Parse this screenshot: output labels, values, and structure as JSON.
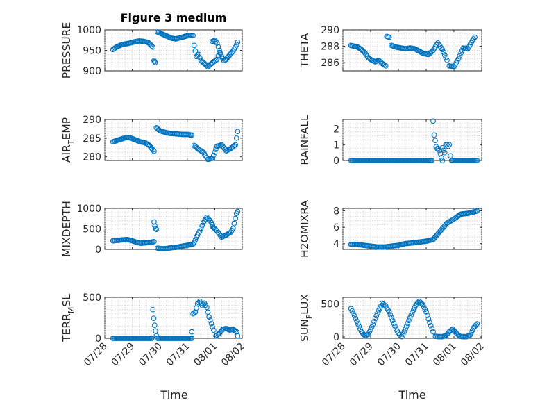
{
  "figure": {
    "title": "Figure 3 medium",
    "xlabel": "Time",
    "date_ticks": [
      "07/28",
      "07/29",
      "07/30",
      "07/31",
      "08/01",
      "08/02"
    ],
    "marker_color": "#0072bd",
    "axes_color": "#262626"
  },
  "chart_data": [
    {
      "type": "scatter",
      "title": "Figure 3 medium",
      "ylabel": "PRESSURE",
      "xlabel": "",
      "x_range": [
        "07/28",
        "08/02"
      ],
      "ylim": [
        900,
        1000
      ],
      "yticks": [
        900,
        950,
        1000
      ],
      "grid": true,
      "segments": [
        {
          "x": [
            "07/28 07:00",
            "07/28 10:00",
            "07/28 14:00",
            "07/28 18:00",
            "07/28 22:00",
            "07/29 02:00",
            "07/29 06:00",
            "07/29 10:00",
            "07/29 14:00",
            "07/29 18:00"
          ],
          "y": [
            952,
            958,
            963,
            966,
            968,
            971,
            973,
            972,
            969,
            958
          ]
        },
        {
          "x": [
            "07/29 19:00",
            "07/29 20:00"
          ],
          "y": [
            925,
            920
          ]
        },
        {
          "x": [
            "07/29 22:00",
            "07/30 02:00",
            "07/30 06:00",
            "07/30 10:00",
            "07/30 14:00",
            "07/30 18:00",
            "07/30 22:00",
            "07/31 02:00",
            "07/31 05:00"
          ],
          "y": [
            995,
            990,
            985,
            980,
            978,
            981,
            984,
            987,
            986
          ]
        },
        {
          "x": [
            "07/31 06:00",
            "07/31 08:00",
            "07/31 10:00",
            "07/31 12:00",
            "07/31 15:00",
            "07/31 18:00",
            "07/31 20:00",
            "07/31 23:00",
            "08/01 02:00",
            "08/01 04:00"
          ],
          "y": [
            962,
            935,
            940,
            925,
            918,
            910,
            915,
            922,
            928,
            945
          ]
        },
        {
          "x": [
            "07/31 22:00",
            "08/01 00:00",
            "08/01 02:00",
            "08/01 04:00",
            "08/01 06:00",
            "08/01 08:00",
            "08/01 10:00",
            "08/01 12:00",
            "08/01 14:00",
            "08/01 16:00",
            "08/01 18:00",
            "08/01 20:00"
          ],
          "y": [
            972,
            975,
            968,
            950,
            935,
            925,
            928,
            935,
            942,
            948,
            958,
            970
          ]
        }
      ]
    },
    {
      "type": "scatter",
      "title": "",
      "ylabel": "THETA",
      "xlabel": "",
      "x_range": [
        "07/28",
        "08/02"
      ],
      "ylim": [
        285,
        290
      ],
      "yticks": [
        286,
        288,
        290
      ],
      "grid": true,
      "segments": [
        {
          "x": [
            "07/28 07:00",
            "07/28 10:00",
            "07/28 13:00",
            "07/28 16:00",
            "07/28 19:00",
            "07/28 22:00",
            "07/29 01:00",
            "07/29 04:00",
            "07/29 07:00",
            "07/29 10:00",
            "07/29 13:00"
          ],
          "y": [
            288.1,
            288.0,
            287.9,
            287.6,
            287.2,
            286.6,
            286.3,
            286.1,
            286.3,
            285.9,
            285.6
          ]
        },
        {
          "x": [
            "07/29 14:00",
            "07/29 16:00"
          ],
          "y": [
            289.2,
            289.1
          ]
        },
        {
          "x": [
            "07/29 18:00",
            "07/29 22:00",
            "07/30 02:00",
            "07/30 06:00",
            "07/30 10:00",
            "07/30 14:00",
            "07/30 18:00",
            "07/30 22:00",
            "07/31 02:00",
            "07/31 06:00",
            "07/31 10:00",
            "07/31 14:00",
            "07/31 18:00"
          ],
          "y": [
            288.1,
            287.9,
            287.8,
            287.7,
            287.8,
            287.7,
            287.4,
            287.1,
            287.0,
            287.5,
            288.4,
            287.6,
            286.3
          ]
        },
        {
          "x": [
            "07/31 20:00",
            "08/01 00:00",
            "08/01 04:00",
            "08/01 08:00",
            "08/01 12:00",
            "08/01 16:00",
            "08/01 18:00"
          ],
          "y": [
            285.6,
            285.5,
            286.5,
            287.8,
            287.7,
            288.7,
            289.1
          ]
        }
      ]
    },
    {
      "type": "scatter",
      "title": "",
      "ylabel": "AIR_TEMP",
      "xlabel": "",
      "x_range": [
        "07/28",
        "08/02"
      ],
      "ylim": [
        279,
        290
      ],
      "yticks": [
        280,
        285,
        290
      ],
      "grid": true,
      "segments": [
        {
          "x": [
            "07/28 07:00",
            "07/28 11:00",
            "07/28 15:00",
            "07/28 19:00",
            "07/28 23:00",
            "07/29 03:00",
            "07/29 07:00",
            "07/29 11:00",
            "07/29 15:00",
            "07/29 19:00"
          ],
          "y": [
            284.0,
            284.4,
            284.8,
            285.2,
            285.0,
            284.5,
            284.0,
            283.8,
            283.0,
            281.5
          ]
        },
        {
          "x": [
            "07/29 21:00",
            "07/30 00:00",
            "07/30 04:00",
            "07/30 08:00",
            "07/30 12:00",
            "07/30 16:00",
            "07/30 20:00",
            "07/31 00:00",
            "07/31 04:00"
          ],
          "y": [
            287.8,
            287.0,
            286.6,
            286.3,
            286.2,
            286.1,
            286.0,
            286.0,
            285.8
          ]
        },
        {
          "x": [
            "07/31 06:00",
            "07/31 10:00",
            "07/31 14:00",
            "07/31 18:00",
            "07/31 22:00",
            "08/01 02:00",
            "08/01 06:00",
            "08/01 10:00",
            "08/01 14:00",
            "08/01 18:00",
            "08/01 20:00"
          ],
          "y": [
            283.0,
            282.0,
            281.2,
            279.3,
            279.6,
            282.8,
            283.2,
            281.6,
            282.2,
            283.2,
            286.8
          ]
        }
      ]
    },
    {
      "type": "scatter",
      "title": "",
      "ylabel": "RAINFALL",
      "xlabel": "",
      "x_range": [
        "07/28",
        "08/02"
      ],
      "ylim": [
        0,
        2.6
      ],
      "yticks": [
        0,
        1,
        2
      ],
      "grid": true,
      "segments": [
        {
          "x": [
            "07/28 07:00",
            "07/28 12:00",
            "07/28 18:00",
            "07/29 00:00",
            "07/29 06:00",
            "07/29 12:00",
            "07/29 18:00",
            "07/30 00:00",
            "07/30 06:00",
            "07/30 12:00",
            "07/30 18:00",
            "07/31 00:00",
            "07/31 05:00"
          ],
          "y": [
            0,
            0,
            0,
            0,
            0,
            0,
            0,
            0,
            0,
            0,
            0,
            0,
            0
          ]
        },
        {
          "x": [
            "07/31 06:00",
            "07/31 07:00",
            "07/31 08:00",
            "07/31 09:00",
            "07/31 10:00",
            "07/31 11:00",
            "07/31 12:00",
            "07/31 13:00",
            "07/31 14:00"
          ],
          "y": [
            2.5,
            1.5,
            1.2,
            0.7,
            0.8,
            0.7,
            0.5,
            0.2,
            0
          ]
        },
        {
          "x": [
            "07/31 14:00",
            "07/31 16:00",
            "07/31 17:00",
            "07/31 18:00",
            "07/31 19:00",
            "07/31 20:00",
            "07/31 21:00"
          ],
          "y": [
            0.8,
            0.5,
            1.0,
            1.0,
            0.9,
            1.0,
            0.3
          ]
        },
        {
          "x": [
            "07/31 22:00",
            "08/01 04:00",
            "08/01 10:00",
            "08/01 16:00",
            "08/01 20:00"
          ],
          "y": [
            0,
            0,
            0,
            0,
            0
          ]
        }
      ]
    },
    {
      "type": "scatter",
      "title": "",
      "ylabel": "MIXDEPTH",
      "xlabel": "",
      "x_range": [
        "07/28",
        "08/02"
      ],
      "ylim": [
        0,
        1000
      ],
      "yticks": [
        0,
        500,
        1000
      ],
      "grid": true,
      "segments": [
        {
          "x": [
            "07/28 07:00",
            "07/28 11:00",
            "07/28 15:00",
            "07/28 19:00",
            "07/28 23:00",
            "07/29 03:00",
            "07/29 07:00",
            "07/29 11:00",
            "07/29 15:00",
            "07/29 19:00"
          ],
          "y": [
            210,
            220,
            230,
            240,
            220,
            180,
            150,
            160,
            170,
            190
          ]
        },
        {
          "x": [
            "07/29 19:00",
            "07/29 20:00",
            "07/29 21:00"
          ],
          "y": [
            670,
            520,
            490
          ]
        },
        {
          "x": [
            "07/29 22:00",
            "07/30 02:00",
            "07/30 06:00",
            "07/30 10:00",
            "07/30 14:00",
            "07/30 18:00",
            "07/30 22:00",
            "07/31 02:00",
            "07/31 05:00"
          ],
          "y": [
            30,
            15,
            20,
            40,
            50,
            70,
            90,
            110,
            130
          ]
        },
        {
          "x": [
            "07/31 06:00",
            "07/31 08:00",
            "07/31 11:00",
            "07/31 14:00",
            "07/31 17:00",
            "07/31 20:00",
            "07/31 22:00"
          ],
          "y": [
            170,
            300,
            450,
            650,
            780,
            700,
            600
          ]
        },
        {
          "x": [
            "07/31 22:00",
            "08/01 02:00",
            "08/01 06:00",
            "08/01 10:00",
            "08/01 14:00",
            "08/01 16:00",
            "08/01 19:00",
            "08/01 20:00"
          ],
          "y": [
            560,
            450,
            300,
            350,
            420,
            510,
            880,
            920
          ]
        }
      ]
    },
    {
      "type": "scatter",
      "title": "",
      "ylabel": "H2OMIXRA",
      "xlabel": "",
      "x_range": [
        "07/28",
        "08/02"
      ],
      "ylim": [
        3.3,
        8.3
      ],
      "yticks": [
        4,
        6,
        8
      ],
      "grid": true,
      "segments": [
        {
          "x": [
            "07/28 07:00",
            "07/28 12:00",
            "07/28 18:00",
            "07/29 00:00",
            "07/29 06:00",
            "07/29 12:00",
            "07/29 18:00",
            "07/30 00:00",
            "07/30 06:00",
            "07/30 12:00",
            "07/30 18:00",
            "07/31 00:00",
            "07/31 06:00",
            "07/31 12:00",
            "07/31 18:00",
            "08/01 00:00",
            "08/01 06:00",
            "08/01 12:00",
            "08/01 18:00",
            "08/01 20:00"
          ],
          "y": [
            3.9,
            3.9,
            3.8,
            3.7,
            3.6,
            3.6,
            3.7,
            3.8,
            4.0,
            4.1,
            4.2,
            4.3,
            4.5,
            5.5,
            6.5,
            7.0,
            7.6,
            7.7,
            7.9,
            8.0
          ]
        }
      ]
    },
    {
      "type": "scatter",
      "title": "",
      "ylabel": "TERR_MSL",
      "xlabel": "Time",
      "x_range": [
        "07/28",
        "08/02"
      ],
      "ylim": [
        0,
        500
      ],
      "yticks": [
        0,
        500
      ],
      "grid": true,
      "segments": [
        {
          "x": [
            "07/28 07:00",
            "07/28 12:00",
            "07/28 18:00",
            "07/29 00:00",
            "07/29 06:00",
            "07/29 12:00",
            "07/29 17:00"
          ],
          "y": [
            0,
            0,
            0,
            0,
            0,
            0,
            0
          ]
        },
        {
          "x": [
            "07/29 18:00",
            "07/29 19:00",
            "07/29 20:00",
            "07/29 21:00"
          ],
          "y": [
            350,
            210,
            110,
            30
          ]
        },
        {
          "x": [
            "07/29 22:00",
            "07/30 04:00",
            "07/30 10:00",
            "07/30 16:00",
            "07/30 22:00",
            "07/31 04:00"
          ],
          "y": [
            0,
            0,
            0,
            0,
            0,
            0
          ]
        },
        {
          "x": [
            "07/31 04:00",
            "07/31 05:00",
            "07/31 07:00",
            "07/31 09:00",
            "07/31 11:00",
            "07/31 13:00",
            "07/31 15:00",
            "07/31 17:00",
            "07/31 19:00",
            "07/31 21:00",
            "07/31 23:00"
          ],
          "y": [
            80,
            300,
            320,
            420,
            450,
            400,
            430,
            380,
            260,
            180,
            100
          ]
        },
        {
          "x": [
            "08/01 01:00",
            "08/01 04:00",
            "08/01 07:00",
            "08/01 10:00",
            "08/01 13:00",
            "08/01 16:00",
            "08/01 19:00",
            "08/01 20:00"
          ],
          "y": [
            30,
            60,
            110,
            120,
            100,
            110,
            80,
            30
          ]
        }
      ]
    },
    {
      "type": "scatter",
      "title": "",
      "ylabel": "SUN_FLUX",
      "xlabel": "Time",
      "x_range": [
        "07/28",
        "08/02"
      ],
      "ylim": [
        -20,
        600
      ],
      "yticks": [
        0,
        500
      ],
      "grid": true,
      "segments": [
        {
          "x": [
            "07/28 07:00",
            "07/28 10:00",
            "07/28 13:00",
            "07/28 16:00",
            "07/28 19:00",
            "07/28 22:00",
            "07/29 01:00",
            "07/29 04:00",
            "07/29 07:00",
            "07/29 10:00",
            "07/29 13:00",
            "07/29 16:00",
            "07/29 19:00",
            "07/29 22:00",
            "07/30 01:00"
          ],
          "y": [
            430,
            320,
            200,
            80,
            20,
            40,
            150,
            280,
            400,
            510,
            470,
            380,
            250,
            120,
            30
          ]
        },
        {
          "x": [
            "07/30 03:00",
            "07/30 06:00",
            "07/30 09:00",
            "07/30 12:00",
            "07/30 15:00",
            "07/30 18:00",
            "07/30 21:00",
            "07/31 00:00",
            "07/31 03:00",
            "07/31 06:00"
          ],
          "y": [
            5,
            120,
            250,
            370,
            480,
            540,
            490,
            380,
            220,
            80
          ]
        },
        {
          "x": [
            "07/31 08:00",
            "07/31 11:00",
            "07/31 14:00",
            "07/31 17:00",
            "07/31 20:00",
            "07/31 23:00",
            "08/01 02:00",
            "08/01 05:00",
            "08/01 08:00",
            "08/01 11:00",
            "08/01 14:00",
            "08/01 17:00",
            "08/01 20:00"
          ],
          "y": [
            10,
            5,
            5,
            20,
            80,
            120,
            60,
            10,
            5,
            5,
            30,
            140,
            200
          ]
        }
      ]
    }
  ]
}
